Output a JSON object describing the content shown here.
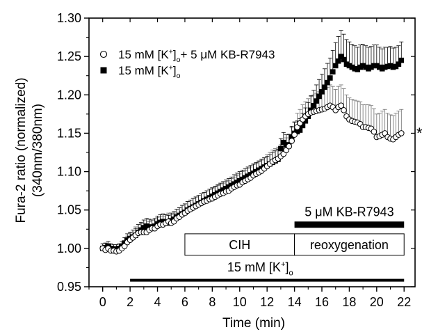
{
  "chart_data": {
    "type": "scatter",
    "xlabel": "Time (min)",
    "ylabel": [
      "Fura-2 ratio (normalized)",
      "(340nm/380nm)"
    ],
    "xlim": [
      -1,
      22.8
    ],
    "ylim": [
      0.95,
      1.3
    ],
    "xticks": [
      0,
      2,
      4,
      6,
      8,
      10,
      12,
      14,
      16,
      18,
      20,
      22
    ],
    "yticks": [
      0.95,
      1.0,
      1.05,
      1.1,
      1.15,
      1.2,
      1.25,
      1.3
    ],
    "ytick_labels": [
      "0.95",
      "1.00",
      "1.05",
      "1.10",
      "1.15",
      "1.20",
      "1.25",
      "1.30"
    ],
    "grid": false,
    "legend_position": "top-left",
    "legend": [
      {
        "marker": "open-circle",
        "label": "15 mM [K",
        "sup": "+",
        "sub": "o",
        "suffix": "+ 5 μM KB-R7943"
      },
      {
        "marker": "filled-square",
        "label": "15 mM [K",
        "sup": "+",
        "sub": "o",
        "suffix": ""
      }
    ],
    "annotations": {
      "significance": "*",
      "bar_kbr": {
        "label": "5 μM KB-R7943",
        "x": [
          14,
          22
        ]
      },
      "box_cih": {
        "label": "CIH",
        "x": [
          6,
          14
        ]
      },
      "box_reox": {
        "label": "reoxygenation",
        "x": [
          14,
          22
        ]
      },
      "bar_k": {
        "label": "15 mM [K",
        "sup": "+",
        "sub": "o",
        "x": [
          2,
          22
        ]
      }
    },
    "series": [
      {
        "name": "15 mM [K+]o + 5 μM KB-R7943",
        "marker": "open-circle",
        "error": "upper",
        "x": [
          0,
          0.2,
          0.4,
          0.6,
          0.8,
          1,
          1.2,
          1.4,
          1.6,
          1.8,
          2,
          2.2,
          2.4,
          2.6,
          2.8,
          3,
          3.2,
          3.4,
          3.6,
          3.8,
          4,
          4.2,
          4.4,
          4.6,
          4.8,
          5,
          5.2,
          5.4,
          5.6,
          5.8,
          6,
          6.2,
          6.4,
          6.6,
          6.8,
          7,
          7.2,
          7.4,
          7.6,
          7.8,
          8,
          8.2,
          8.4,
          8.6,
          8.8,
          9,
          9.2,
          9.4,
          9.6,
          9.8,
          10,
          10.2,
          10.4,
          10.6,
          10.8,
          11,
          11.2,
          11.4,
          11.6,
          11.8,
          12,
          12.2,
          12.4,
          12.6,
          12.8,
          13,
          13.2,
          13.4,
          13.6,
          13.8,
          14,
          14.2,
          14.4,
          14.6,
          14.8,
          15,
          15.2,
          15.4,
          15.6,
          15.8,
          16,
          16.2,
          16.4,
          16.6,
          16.8,
          17,
          17.2,
          17.4,
          17.6,
          17.8,
          18,
          18.2,
          18.4,
          18.6,
          18.8,
          19,
          19.2,
          19.4,
          19.6,
          19.8,
          20,
          20.2,
          20.4,
          20.6,
          20.8,
          21,
          21.2,
          21.4,
          21.6,
          21.8
        ],
        "y": [
          1.0,
          0.998,
          1.0,
          0.997,
          0.997,
          0.996,
          0.997,
          1.0,
          1.003,
          1.008,
          1.011,
          1.014,
          1.017,
          1.02,
          1.021,
          1.021,
          1.021,
          1.024,
          1.026,
          1.026,
          1.029,
          1.031,
          1.031,
          1.033,
          1.035,
          1.033,
          1.035,
          1.039,
          1.041,
          1.044,
          1.046,
          1.049,
          1.051,
          1.053,
          1.055,
          1.057,
          1.059,
          1.061,
          1.062,
          1.064,
          1.065,
          1.067,
          1.069,
          1.071,
          1.072,
          1.074,
          1.075,
          1.078,
          1.08,
          1.082,
          1.083,
          1.086,
          1.088,
          1.09,
          1.092,
          1.095,
          1.097,
          1.099,
          1.101,
          1.104,
          1.107,
          1.11,
          1.113,
          1.115,
          1.117,
          1.12,
          1.123,
          1.128,
          1.133,
          1.14,
          1.148,
          1.158,
          1.163,
          1.168,
          1.172,
          1.175,
          1.177,
          1.178,
          1.179,
          1.18,
          1.181,
          1.182,
          1.184,
          1.186,
          1.184,
          1.18,
          1.184,
          1.186,
          1.18,
          1.172,
          1.168,
          1.166,
          1.165,
          1.164,
          1.162,
          1.158,
          1.158,
          1.157,
          1.156,
          1.152,
          1.145,
          1.146,
          1.148,
          1.15,
          1.145,
          1.143,
          1.142,
          1.145,
          1.148,
          1.15
        ],
        "err": [
          0.006,
          0.006,
          0.006,
          0.006,
          0.006,
          0.006,
          0.006,
          0.006,
          0.007,
          0.008,
          0.009,
          0.01,
          0.011,
          0.011,
          0.011,
          0.011,
          0.011,
          0.011,
          0.011,
          0.011,
          0.011,
          0.011,
          0.011,
          0.011,
          0.011,
          0.011,
          0.011,
          0.012,
          0.012,
          0.012,
          0.012,
          0.012,
          0.012,
          0.012,
          0.012,
          0.012,
          0.012,
          0.012,
          0.013,
          0.013,
          0.013,
          0.013,
          0.013,
          0.013,
          0.013,
          0.013,
          0.013,
          0.013,
          0.013,
          0.013,
          0.014,
          0.014,
          0.014,
          0.014,
          0.014,
          0.014,
          0.014,
          0.014,
          0.014,
          0.014,
          0.015,
          0.015,
          0.015,
          0.015,
          0.015,
          0.015,
          0.016,
          0.016,
          0.016,
          0.017,
          0.017,
          0.018,
          0.018,
          0.019,
          0.019,
          0.02,
          0.021,
          0.022,
          0.023,
          0.024,
          0.025,
          0.026,
          0.026,
          0.027,
          0.027,
          0.027,
          0.027,
          0.027,
          0.028,
          0.028,
          0.028,
          0.028,
          0.028,
          0.028,
          0.029,
          0.029,
          0.029,
          0.03,
          0.03,
          0.03,
          0.03,
          0.03,
          0.031,
          0.031,
          0.031,
          0.031,
          0.031,
          0.031,
          0.031,
          0.031
        ]
      },
      {
        "name": "15 mM [K+]o",
        "marker": "filled-square",
        "error": "upper",
        "x": [
          0,
          0.2,
          0.4,
          0.6,
          0.8,
          1,
          1.2,
          1.4,
          1.6,
          1.8,
          2,
          2.2,
          2.4,
          2.6,
          2.8,
          3,
          3.2,
          3.4,
          3.6,
          3.8,
          4,
          4.2,
          4.4,
          4.6,
          4.8,
          5,
          5.2,
          5.4,
          5.6,
          5.8,
          6,
          6.2,
          6.4,
          6.6,
          6.8,
          7,
          7.2,
          7.4,
          7.6,
          7.8,
          8,
          8.2,
          8.4,
          8.6,
          8.8,
          9,
          9.2,
          9.4,
          9.6,
          9.8,
          10,
          10.2,
          10.4,
          10.6,
          10.8,
          11,
          11.2,
          11.4,
          11.6,
          11.8,
          12,
          12.2,
          12.4,
          12.6,
          12.8,
          13,
          13.2,
          13.4,
          13.6,
          13.8,
          14,
          14.2,
          14.4,
          14.6,
          14.8,
          15,
          15.2,
          15.4,
          15.6,
          15.8,
          16,
          16.2,
          16.4,
          16.6,
          16.8,
          17,
          17.2,
          17.4,
          17.6,
          17.8,
          18,
          18.2,
          18.4,
          18.6,
          18.8,
          19,
          19.2,
          19.4,
          19.6,
          19.8,
          20,
          20.2,
          20.4,
          20.6,
          20.8,
          21,
          21.2,
          21.4,
          21.6,
          21.8
        ],
        "y": [
          1.0,
          1.001,
          1.003,
          1.0,
          0.999,
          0.999,
          1.0,
          1.003,
          1.007,
          1.011,
          1.013,
          1.015,
          1.017,
          1.021,
          1.024,
          1.027,
          1.029,
          1.028,
          1.027,
          1.029,
          1.032,
          1.034,
          1.035,
          1.034,
          1.033,
          1.036,
          1.038,
          1.041,
          1.043,
          1.045,
          1.047,
          1.05,
          1.052,
          1.054,
          1.056,
          1.058,
          1.06,
          1.062,
          1.064,
          1.066,
          1.068,
          1.07,
          1.072,
          1.074,
          1.076,
          1.078,
          1.08,
          1.082,
          1.084,
          1.086,
          1.088,
          1.09,
          1.092,
          1.094,
          1.096,
          1.098,
          1.1,
          1.102,
          1.104,
          1.106,
          1.108,
          1.11,
          1.112,
          1.114,
          1.116,
          1.13,
          1.138,
          1.135,
          1.134,
          1.145,
          1.15,
          1.152,
          1.154,
          1.16,
          1.166,
          1.172,
          1.18,
          1.186,
          1.192,
          1.198,
          1.204,
          1.21,
          1.216,
          1.222,
          1.23,
          1.238,
          1.244,
          1.25,
          1.246,
          1.24,
          1.238,
          1.236,
          1.234,
          1.233,
          1.236,
          1.238,
          1.236,
          1.234,
          1.236,
          1.238,
          1.238,
          1.236,
          1.234,
          1.236,
          1.237,
          1.238,
          1.236,
          1.237,
          1.24,
          1.245
        ],
        "err": [
          0.006,
          0.006,
          0.006,
          0.006,
          0.006,
          0.006,
          0.006,
          0.006,
          0.007,
          0.008,
          0.008,
          0.009,
          0.009,
          0.01,
          0.01,
          0.01,
          0.01,
          0.01,
          0.01,
          0.01,
          0.01,
          0.01,
          0.01,
          0.01,
          0.01,
          0.01,
          0.01,
          0.01,
          0.01,
          0.011,
          0.011,
          0.011,
          0.011,
          0.011,
          0.011,
          0.011,
          0.011,
          0.011,
          0.011,
          0.011,
          0.011,
          0.011,
          0.011,
          0.011,
          0.011,
          0.011,
          0.011,
          0.011,
          0.012,
          0.012,
          0.012,
          0.012,
          0.012,
          0.012,
          0.012,
          0.012,
          0.012,
          0.012,
          0.012,
          0.012,
          0.012,
          0.012,
          0.013,
          0.013,
          0.013,
          0.013,
          0.013,
          0.013,
          0.014,
          0.014,
          0.014,
          0.014,
          0.015,
          0.016,
          0.017,
          0.018,
          0.019,
          0.02,
          0.021,
          0.022,
          0.023,
          0.024,
          0.025,
          0.026,
          0.028,
          0.03,
          0.032,
          0.034,
          0.033,
          0.032,
          0.031,
          0.03,
          0.03,
          0.029,
          0.029,
          0.028,
          0.028,
          0.028,
          0.027,
          0.027,
          0.027,
          0.026,
          0.026,
          0.026,
          0.025,
          0.025,
          0.025,
          0.025,
          0.024,
          0.024
        ]
      }
    ]
  }
}
